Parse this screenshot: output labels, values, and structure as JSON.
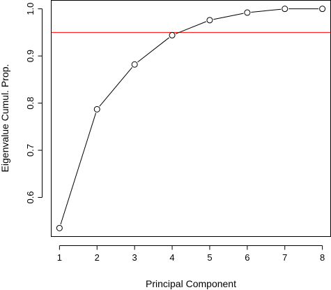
{
  "chart_data": {
    "type": "line",
    "xlabel": "Principal Component",
    "ylabel": "Eigenvalue Cumul. Prop.",
    "x": [
      1,
      2,
      3,
      4,
      5,
      6,
      7,
      8
    ],
    "series": [
      {
        "values": [
          0.535,
          0.787,
          0.882,
          0.944,
          0.976,
          0.992,
          1.0,
          1.0
        ],
        "marker": "open-circle",
        "color": "#000000"
      }
    ],
    "reference_line": {
      "y": 0.95,
      "color": "#ff0000"
    },
    "xlim": [
      0.78,
      8.22
    ],
    "ylim": [
      0.517,
      1.018
    ],
    "xticks": [
      1,
      2,
      3,
      4,
      5,
      6,
      7,
      8
    ],
    "yticks": [
      0.6,
      0.7,
      0.8,
      0.9,
      1.0
    ],
    "ytick_labels": [
      "0.6",
      "0.7",
      "0.8",
      "0.9",
      "1.0"
    ],
    "grid": false,
    "legend": "none"
  }
}
